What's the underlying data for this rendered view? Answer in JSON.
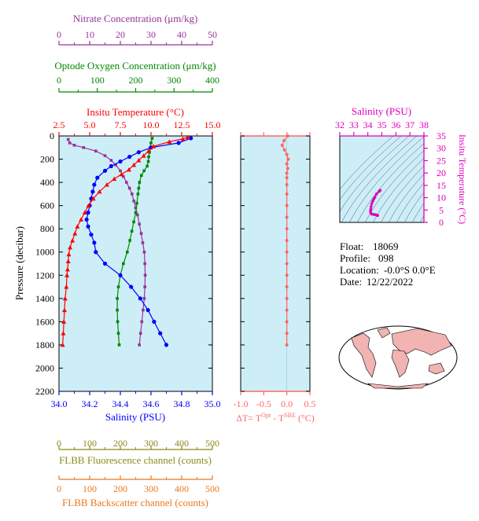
{
  "colors": {
    "panel_bg": "#cdeef7",
    "temperature": "#ff0000",
    "salinity": "#0000ff",
    "oxygen": "#008800",
    "nitrate": "#993399",
    "flbb": "#8b8b1a",
    "backscatter": "#e8781e",
    "delta_t": "#ff6666",
    "ts_axis": "#dd00bb",
    "ts_contour": "#3b5a7a",
    "land": "#f2b3b3"
  },
  "info": {
    "float_label": "Float:",
    "float_value": "18069",
    "profile_label": "Profile:",
    "profile_value": "098",
    "location_label": "Location:",
    "location_value": "-0.0°S   0.0°E",
    "date_label": "Date:",
    "date_value": "12/22/2022"
  },
  "chart_data": [
    {
      "type": "line",
      "ylabel": "Pressure (decibar)",
      "ylim": [
        2200,
        0
      ],
      "yticks": [
        0,
        200,
        400,
        600,
        800,
        1000,
        1200,
        1400,
        1600,
        1800,
        2000,
        2200
      ],
      "axes": {
        "temperature": {
          "label": "Insitu Temperature (°C)",
          "range": [
            2.5,
            15.0
          ],
          "ticks": [
            "2.5",
            "5.0",
            "7.5",
            "10.0",
            "12.5",
            "15.0"
          ]
        },
        "salinity": {
          "label": "Salinity (PSU)",
          "range": [
            34.0,
            35.0
          ],
          "ticks": [
            "34.0",
            "34.2",
            "34.4",
            "34.6",
            "34.8",
            "35.0"
          ]
        },
        "oxygen": {
          "label": "Optode Oxygen Concentration (μm/kg)",
          "range": [
            0,
            400
          ],
          "ticks": [
            "0",
            "100",
            "200",
            "300",
            "400"
          ]
        },
        "nitrate": {
          "label": "Nitrate Concentration (μm/kg)",
          "range": [
            0,
            50
          ],
          "ticks": [
            "0",
            "10",
            "20",
            "30",
            "40",
            "50"
          ]
        },
        "flbb": {
          "label": "FLBB Fluorescence channel (counts)",
          "range": [
            0,
            500
          ],
          "ticks": [
            "0",
            "100",
            "200",
            "300",
            "400",
            "500"
          ]
        },
        "backscatter": {
          "label": "FLBB Backscatter channel (counts)",
          "range": [
            0,
            500
          ],
          "ticks": [
            "0",
            "100",
            "200",
            "300",
            "400",
            "500"
          ]
        }
      },
      "series": [
        {
          "name": "temperature",
          "points": [
            [
              13.0,
              10
            ],
            [
              12.6,
              25
            ],
            [
              11.5,
              50
            ],
            [
              10.2,
              90
            ],
            [
              9.8,
              130
            ],
            [
              9.4,
              170
            ],
            [
              9.0,
              210
            ],
            [
              8.6,
              250
            ],
            [
              8.2,
              290
            ],
            [
              7.6,
              330
            ],
            [
              7.0,
              370
            ],
            [
              6.4,
              420
            ],
            [
              5.8,
              480
            ],
            [
              5.3,
              540
            ],
            [
              4.9,
              600
            ],
            [
              4.6,
              660
            ],
            [
              4.3,
              720
            ],
            [
              4.0,
              780
            ],
            [
              3.8,
              840
            ],
            [
              3.6,
              900
            ],
            [
              3.4,
              960
            ],
            [
              3.3,
              1020
            ],
            [
              3.25,
              1080
            ],
            [
              3.2,
              1150
            ],
            [
              3.15,
              1200
            ],
            [
              3.1,
              1300
            ],
            [
              3.0,
              1400
            ],
            [
              2.95,
              1500
            ],
            [
              2.9,
              1600
            ],
            [
              2.85,
              1700
            ],
            [
              2.8,
              1800
            ]
          ]
        },
        {
          "name": "salinity",
          "points": [
            [
              34.86,
              20
            ],
            [
              34.78,
              60
            ],
            [
              34.6,
              100
            ],
            [
              34.52,
              140
            ],
            [
              34.46,
              180
            ],
            [
              34.4,
              220
            ],
            [
              34.34,
              260
            ],
            [
              34.3,
              300
            ],
            [
              34.25,
              360
            ],
            [
              34.23,
              420
            ],
            [
              34.22,
              480
            ],
            [
              34.21,
              540
            ],
            [
              34.2,
              600
            ],
            [
              34.19,
              660
            ],
            [
              34.18,
              720
            ],
            [
              34.19,
              780
            ],
            [
              34.21,
              850
            ],
            [
              34.23,
              920
            ],
            [
              34.24,
              1000
            ],
            [
              34.3,
              1100
            ],
            [
              34.4,
              1200
            ],
            [
              34.47,
              1300
            ],
            [
              34.53,
              1400
            ],
            [
              34.58,
              1500
            ],
            [
              34.62,
              1600
            ],
            [
              34.66,
              1700
            ],
            [
              34.7,
              1800
            ]
          ]
        },
        {
          "name": "oxygen",
          "points": [
            [
              243,
              20
            ],
            [
              240,
              60
            ],
            [
              238,
              100
            ],
            [
              236,
              140
            ],
            [
              234,
              180
            ],
            [
              233,
              220
            ],
            [
              230,
              260
            ],
            [
              222,
              300
            ],
            [
              215,
              340
            ],
            [
              210,
              400
            ],
            [
              208,
              450
            ],
            [
              206,
              500
            ],
            [
              203,
              580
            ],
            [
              200,
              660
            ],
            [
              195,
              740
            ],
            [
              190,
              820
            ],
            [
              185,
              900
            ],
            [
              178,
              1000
            ],
            [
              168,
              1100
            ],
            [
              160,
              1200
            ],
            [
              155,
              1300
            ],
            [
              152,
              1400
            ],
            [
              152,
              1500
            ],
            [
              153,
              1600
            ],
            [
              155,
              1700
            ],
            [
              157,
              1800
            ]
          ]
        },
        {
          "name": "nitrate",
          "points": [
            [
              3,
              30
            ],
            [
              3.5,
              60
            ],
            [
              5,
              80
            ],
            [
              8,
              100
            ],
            [
              12,
              130
            ],
            [
              15,
              170
            ],
            [
              17,
              210
            ],
            [
              18.5,
              250
            ],
            [
              20,
              300
            ],
            [
              21,
              350
            ],
            [
              22,
              400
            ],
            [
              23,
              450
            ],
            [
              23.8,
              500
            ],
            [
              24.4,
              560
            ],
            [
              25,
              620
            ],
            [
              25.6,
              680
            ],
            [
              26.2,
              760
            ],
            [
              26.8,
              840
            ],
            [
              27.3,
              920
            ],
            [
              27.8,
              1000
            ],
            [
              28,
              1100
            ],
            [
              28.1,
              1200
            ],
            [
              28,
              1300
            ],
            [
              27.8,
              1400
            ],
            [
              27.4,
              1500
            ],
            [
              27,
              1600
            ],
            [
              26.6,
              1700
            ],
            [
              26.2,
              1800
            ]
          ]
        }
      ]
    },
    {
      "type": "line",
      "xlabel": "ΔT= T",
      "xlabel_sup1": "Opt",
      "xlabel_mid": " - T",
      "xlabel_sup2": "SBE",
      "xlabel_end": " (°C)",
      "xlim": [
        -1.0,
        0.5
      ],
      "xticks": [
        "-1.0",
        "-0.5",
        "0.0",
        "0.5"
      ],
      "ylim": [
        2200,
        0
      ],
      "series": [
        {
          "name": "delta_t",
          "points": [
            [
              0.02,
              0
            ],
            [
              -0.06,
              40
            ],
            [
              -0.1,
              80
            ],
            [
              -0.05,
              120
            ],
            [
              0.0,
              160
            ],
            [
              0.03,
              200
            ],
            [
              0.0,
              240
            ],
            [
              0.02,
              280
            ],
            [
              0.0,
              320
            ],
            [
              0.0,
              360
            ],
            [
              0.0,
              420
            ],
            [
              0.0,
              500
            ],
            [
              0.0,
              600
            ],
            [
              0.0,
              700
            ],
            [
              0.0,
              800
            ],
            [
              0.0,
              900
            ],
            [
              0.0,
              1000
            ],
            [
              0.0,
              1100
            ],
            [
              0.0,
              1200
            ],
            [
              0.0,
              1300
            ],
            [
              0.0,
              1400
            ],
            [
              0.0,
              1500
            ],
            [
              0.0,
              1600
            ],
            [
              0.0,
              1700
            ],
            [
              0.0,
              1800
            ]
          ]
        }
      ]
    },
    {
      "type": "scatter",
      "xlabel": "Salinity (PSU)",
      "ylabel": "Insitu Temperature (°C)",
      "xlim": [
        32,
        38
      ],
      "ylim": [
        0,
        35
      ],
      "xticks": [
        "32",
        "33",
        "34",
        "35",
        "36",
        "37",
        "38"
      ],
      "yticks": [
        "0",
        "5",
        "10",
        "15",
        "20",
        "25",
        "30",
        "35"
      ],
      "series": [
        {
          "name": "ts",
          "points": [
            [
              34.88,
              13.0
            ],
            [
              34.82,
              12.6
            ],
            [
              34.62,
              11.5
            ],
            [
              34.5,
              10.2
            ],
            [
              34.42,
              9.4
            ],
            [
              34.35,
              8.6
            ],
            [
              34.28,
              7.6
            ],
            [
              34.23,
              6.4
            ],
            [
              34.21,
              5.3
            ],
            [
              34.19,
              4.6
            ],
            [
              34.2,
              4.0
            ],
            [
              34.23,
              3.6
            ],
            [
              34.3,
              3.3
            ],
            [
              34.45,
              3.2
            ],
            [
              34.55,
              3.1
            ],
            [
              34.62,
              2.95
            ],
            [
              34.7,
              2.8
            ]
          ]
        }
      ]
    }
  ]
}
